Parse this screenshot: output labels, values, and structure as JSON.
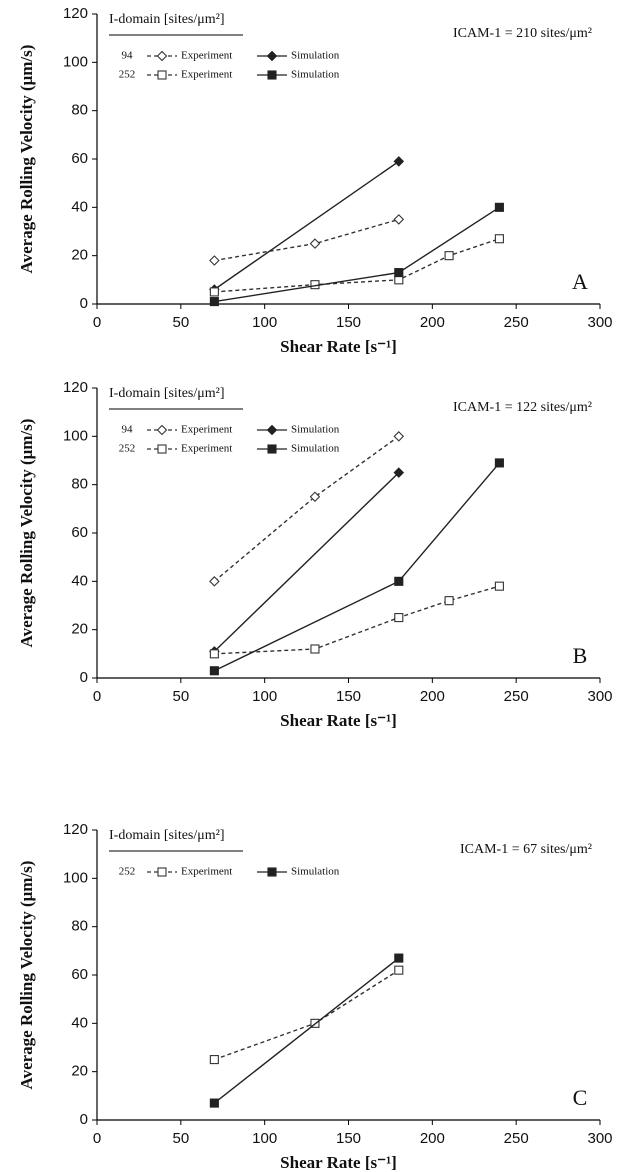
{
  "chart_data": [
    {
      "type": "line",
      "panel_label": "A",
      "annotation": "ICAM-1 = 210 sites/μm²",
      "legend_title": "I-domain [sites/μm²]",
      "xlabel": "Shear Rate [s⁻¹]",
      "ylabel": "Average Rolling Velocity (μm/s)",
      "xlim": [
        0,
        300
      ],
      "xticks": [
        0,
        50,
        100,
        150,
        200,
        250,
        300
      ],
      "ylim": [
        0,
        120
      ],
      "yticks": [
        0,
        20,
        40,
        60,
        80,
        100,
        120
      ],
      "series": [
        {
          "group": "94",
          "name": "Experiment",
          "marker": "diamond",
          "filled": false,
          "dashed": true,
          "color": "#333333",
          "x": [
            70,
            130,
            180
          ],
          "values": [
            18,
            25,
            35
          ]
        },
        {
          "group": "94",
          "name": "Simulation",
          "marker": "diamond",
          "filled": true,
          "dashed": false,
          "color": "#222222",
          "x": [
            70,
            180
          ],
          "values": [
            6,
            59
          ]
        },
        {
          "group": "252",
          "name": "Experiment",
          "marker": "square",
          "filled": false,
          "dashed": true,
          "color": "#333333",
          "x": [
            70,
            130,
            180,
            210,
            240
          ],
          "values": [
            5,
            8,
            10,
            20,
            27
          ]
        },
        {
          "group": "252",
          "name": "Simulation",
          "marker": "square",
          "filled": true,
          "dashed": false,
          "color": "#222222",
          "x": [
            70,
            180,
            240
          ],
          "values": [
            1,
            13,
            40
          ]
        }
      ]
    },
    {
      "type": "line",
      "panel_label": "B",
      "annotation": "ICAM-1 = 122 sites/μm²",
      "legend_title": "I-domain [sites/μm²]",
      "xlabel": "Shear Rate [s⁻¹]",
      "ylabel": "Average Rolling Velocity (μm/s)",
      "xlim": [
        0,
        300
      ],
      "xticks": [
        0,
        50,
        100,
        150,
        200,
        250,
        300
      ],
      "ylim": [
        0,
        120
      ],
      "yticks": [
        0,
        20,
        40,
        60,
        80,
        100,
        120
      ],
      "series": [
        {
          "group": "94",
          "name": "Experiment",
          "marker": "diamond",
          "filled": false,
          "dashed": true,
          "color": "#333333",
          "x": [
            70,
            130,
            180
          ],
          "values": [
            40,
            75,
            100
          ]
        },
        {
          "group": "94",
          "name": "Simulation",
          "marker": "diamond",
          "filled": true,
          "dashed": false,
          "color": "#222222",
          "x": [
            70,
            180
          ],
          "values": [
            11,
            85
          ]
        },
        {
          "group": "252",
          "name": "Experiment",
          "marker": "square",
          "filled": false,
          "dashed": true,
          "color": "#333333",
          "x": [
            70,
            130,
            180,
            210,
            240
          ],
          "values": [
            10,
            12,
            25,
            32,
            38
          ]
        },
        {
          "group": "252",
          "name": "Simulation",
          "marker": "square",
          "filled": true,
          "dashed": false,
          "color": "#222222",
          "x": [
            70,
            180,
            240
          ],
          "values": [
            3,
            40,
            89
          ]
        }
      ]
    },
    {
      "type": "line",
      "panel_label": "C",
      "annotation": "ICAM-1 = 67 sites/μm²",
      "legend_title": "I-domain [sites/μm²]",
      "xlabel": "Shear Rate [s⁻¹]",
      "ylabel": "Average Rolling Velocity (μm/s)",
      "xlim": [
        0,
        300
      ],
      "xticks": [
        0,
        50,
        100,
        150,
        200,
        250,
        300
      ],
      "ylim": [
        0,
        120
      ],
      "yticks": [
        0,
        20,
        40,
        60,
        80,
        100,
        120
      ],
      "series": [
        {
          "group": "252",
          "name": "Experiment",
          "marker": "square",
          "filled": false,
          "dashed": true,
          "color": "#333333",
          "x": [
            70,
            130,
            180
          ],
          "values": [
            25,
            40,
            62
          ]
        },
        {
          "group": "252",
          "name": "Simulation",
          "marker": "square",
          "filled": true,
          "dashed": false,
          "color": "#222222",
          "x": [
            70,
            180
          ],
          "values": [
            7,
            67
          ]
        }
      ]
    }
  ]
}
